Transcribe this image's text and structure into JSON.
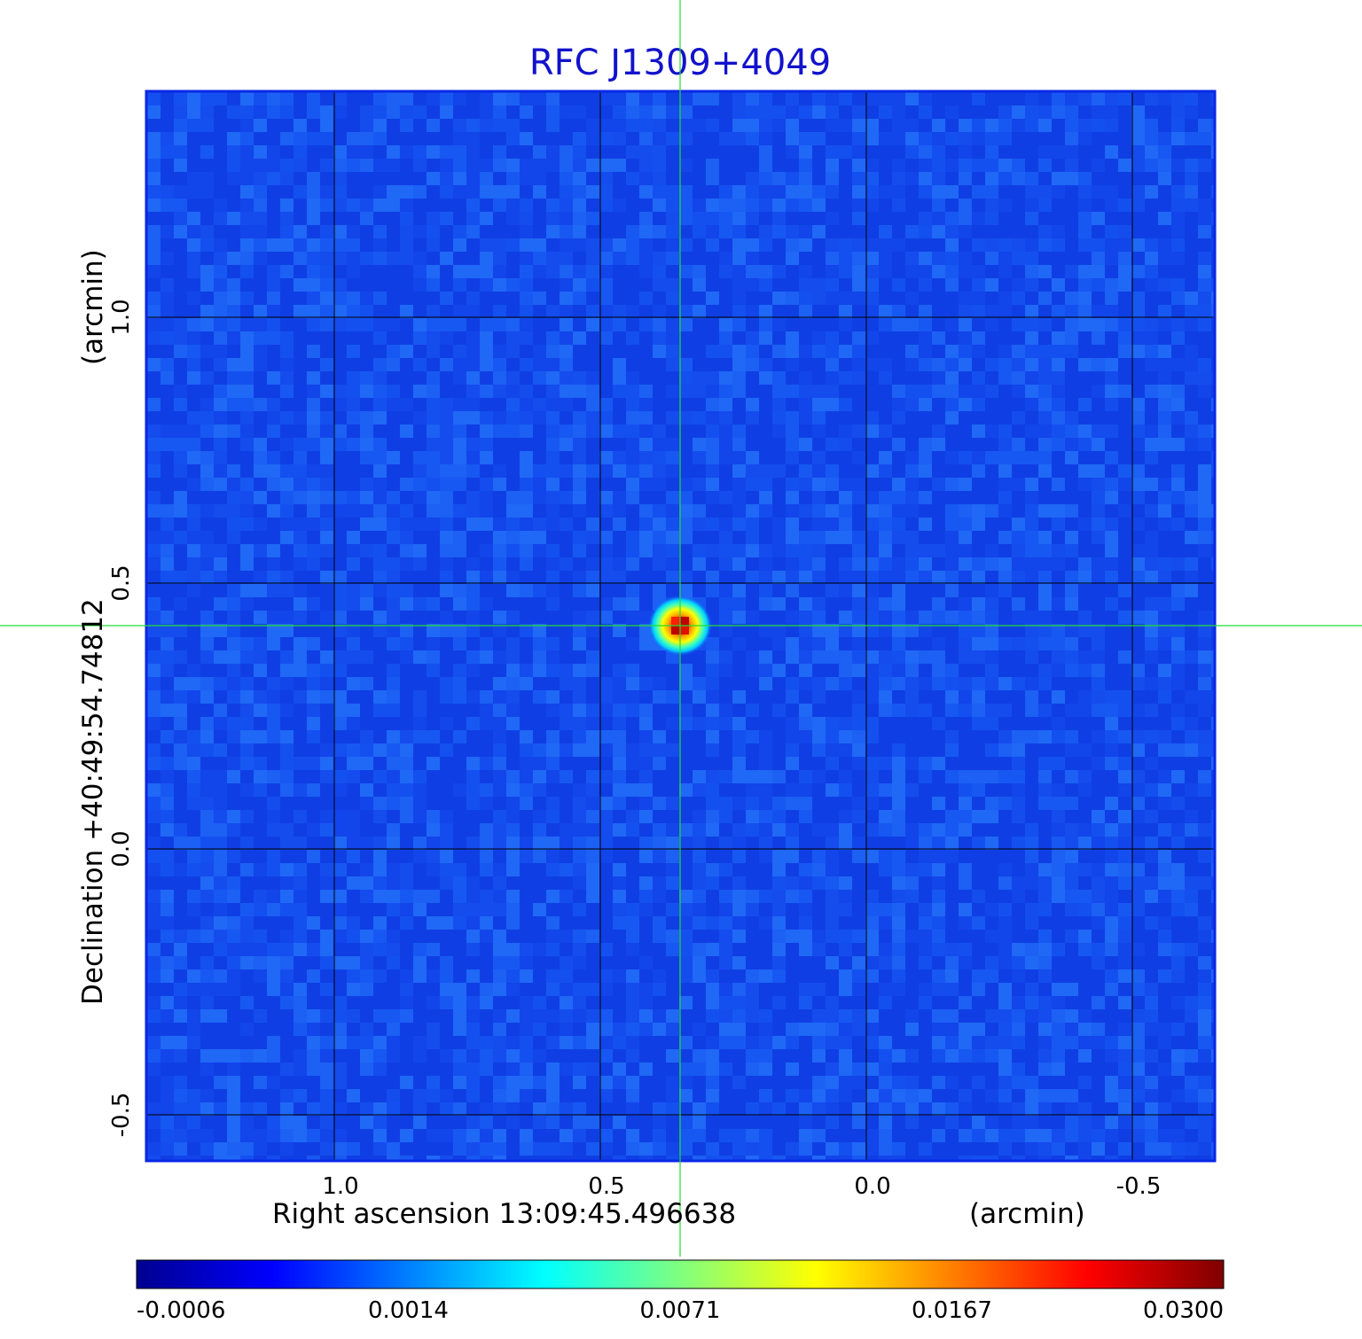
{
  "chart_data": {
    "type": "heatmap",
    "title": "RFC J1309+4049",
    "xlabel": "Right ascension  13:09:45.496638",
    "xunit": "(arcmin)",
    "ylabel": "Declination  +40:49:54.74812",
    "yunit": "(arcmin)",
    "x_ticks": [
      {
        "value": 1.0,
        "label": "1.0"
      },
      {
        "value": 0.5,
        "label": "0.5"
      },
      {
        "value": 0.0,
        "label": "0.0"
      },
      {
        "value": -0.5,
        "label": "-0.5"
      }
    ],
    "y_ticks": [
      {
        "value": 1.0,
        "label": "1.0"
      },
      {
        "value": 0.5,
        "label": "0.5"
      },
      {
        "value": 0.0,
        "label": "0.0"
      },
      {
        "value": -0.5,
        "label": "-0.5"
      }
    ],
    "xlim": [
      1.35,
      -0.65
    ],
    "ylim": [
      -0.58,
      1.42
    ],
    "grid": true,
    "crosshair": {
      "x": 0.35,
      "y": 0.42
    },
    "peak": {
      "x": 0.35,
      "y": 0.42,
      "value": 0.03
    },
    "colorbar": {
      "colormap": "jet",
      "ticks": [
        {
          "value": -0.0006,
          "label": "-0.0006"
        },
        {
          "value": 0.0014,
          "label": "0.0014"
        },
        {
          "value": 0.0071,
          "label": "0.0071"
        },
        {
          "value": 0.0167,
          "label": "0.0167"
        },
        {
          "value": 0.03,
          "label": "0.0300"
        }
      ],
      "range": [
        -0.0006,
        0.03
      ]
    },
    "colors": {
      "title": "#1212cc",
      "frame": "#0a28e6",
      "background_field": "#1450f0",
      "crosshair": "#22dd33",
      "grid": "#000000"
    }
  }
}
